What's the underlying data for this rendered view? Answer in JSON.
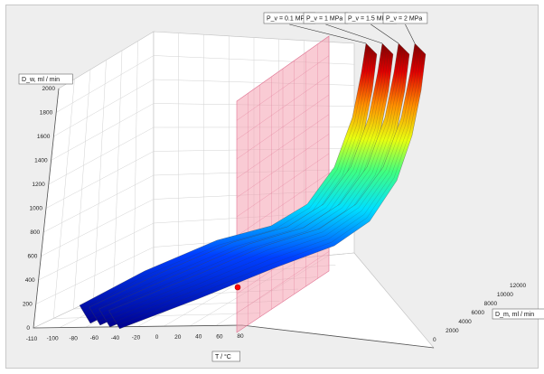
{
  "chart_data": {
    "type": "surface",
    "title": "",
    "xlabel": "T / °C",
    "ylabel": "D_m, ml / min",
    "zlabel": "D_w, ml / min",
    "x_ticks": [
      "-110",
      "-100",
      "-80",
      "-60",
      "-40",
      "-20",
      "0",
      "20",
      "40",
      "60",
      "80"
    ],
    "y_ticks": [
      "0",
      "2000",
      "4000",
      "6000",
      "8000",
      "10000",
      "12000"
    ],
    "z_ticks": [
      "0",
      "200",
      "400",
      "600",
      "800",
      "1000",
      "1200",
      "1400",
      "1600",
      "1800",
      "2000"
    ],
    "xlim": [
      -110,
      80
    ],
    "ylim": [
      0,
      12000
    ],
    "zlim": [
      0,
      2000
    ],
    "grid": true,
    "colormap": "jet",
    "reference_plane": {
      "x": 0,
      "color": "#f4a0b0"
    },
    "marker": {
      "x": 0,
      "color": "#ff0000"
    },
    "series": [
      {
        "name": "P_v = 0.1 MPa"
      },
      {
        "name": "P_v = 1 MPa"
      },
      {
        "name": "P_v = 1.5 MPa"
      },
      {
        "name": "P_v = 2 MPa"
      }
    ]
  }
}
